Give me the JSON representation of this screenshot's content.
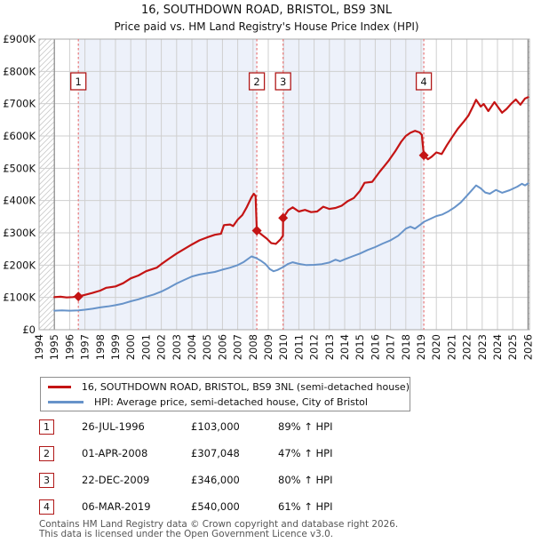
{
  "header": {
    "title": "16, SOUTHDOWN ROAD, BRISTOL, BS9 3NL",
    "subtitle": "Price paid vs. HM Land Registry's House Price Index (HPI)"
  },
  "chart_data": {
    "type": "line",
    "values_unit": "GBP_thousands",
    "x_axis": {
      "tick_years": [
        1994,
        1995,
        1996,
        1997,
        1998,
        1999,
        2000,
        2001,
        2002,
        2003,
        2004,
        2005,
        2006,
        2007,
        2008,
        2009,
        2010,
        2011,
        2012,
        2013,
        2014,
        2015,
        2016,
        2017,
        2018,
        2019,
        2020,
        2021,
        2022,
        2023,
        2024,
        2025,
        2026
      ]
    },
    "y_axis": {
      "tick_values": [
        0,
        100,
        200,
        300,
        400,
        500,
        600,
        700,
        800,
        900
      ],
      "tick_labels": [
        "£0",
        "£100K",
        "£200K",
        "£300K",
        "£400K",
        "£500K",
        "£600K",
        "£700K",
        "£800K",
        "£900K"
      ]
    },
    "data_range": {
      "start_year": 1995.0,
      "end_year": 2026.0
    },
    "shading": {
      "color": "#edf1fa",
      "intervals": [
        [
          1996.57,
          2008.25
        ],
        [
          2009.97,
          2019.18
        ]
      ]
    },
    "series": [
      {
        "name": "price-paid",
        "color": "#c41414",
        "width": 2.2,
        "points": [
          [
            1995.0,
            101
          ],
          [
            1995.4,
            102
          ],
          [
            1995.8,
            100
          ],
          [
            1996.2,
            101
          ],
          [
            1996.57,
            103
          ],
          [
            1997.0,
            108
          ],
          [
            1997.5,
            114
          ],
          [
            1998.0,
            121
          ],
          [
            1998.4,
            130
          ],
          [
            1999.0,
            134
          ],
          [
            1999.5,
            144
          ],
          [
            2000.0,
            159
          ],
          [
            2000.5,
            168
          ],
          [
            2001.0,
            181
          ],
          [
            2001.3,
            186
          ],
          [
            2001.7,
            192
          ],
          [
            2002.0,
            203
          ],
          [
            2002.5,
            220
          ],
          [
            2003.0,
            236
          ],
          [
            2003.5,
            250
          ],
          [
            2004.0,
            264
          ],
          [
            2004.5,
            277
          ],
          [
            2005.0,
            286
          ],
          [
            2005.5,
            294
          ],
          [
            2005.9,
            297
          ],
          [
            2006.1,
            324
          ],
          [
            2006.5,
            326
          ],
          [
            2006.7,
            321
          ],
          [
            2007.0,
            341
          ],
          [
            2007.3,
            355
          ],
          [
            2007.6,
            380
          ],
          [
            2007.9,
            410
          ],
          [
            2008.05,
            421
          ],
          [
            2008.17,
            414
          ],
          [
            2008.25,
            307
          ],
          [
            2008.5,
            297
          ],
          [
            2008.9,
            282
          ],
          [
            2009.2,
            268
          ],
          [
            2009.5,
            266
          ],
          [
            2009.8,
            280
          ],
          [
            2009.96,
            291
          ],
          [
            2009.97,
            346
          ],
          [
            2010.3,
            370
          ],
          [
            2010.6,
            379
          ],
          [
            2011.0,
            366
          ],
          [
            2011.4,
            371
          ],
          [
            2011.8,
            364
          ],
          [
            2012.2,
            366
          ],
          [
            2012.6,
            381
          ],
          [
            2013.0,
            374
          ],
          [
            2013.4,
            377
          ],
          [
            2013.8,
            384
          ],
          [
            2014.2,
            398
          ],
          [
            2014.6,
            408
          ],
          [
            2015.0,
            430
          ],
          [
            2015.3,
            455
          ],
          [
            2015.8,
            458
          ],
          [
            2016.3,
            490
          ],
          [
            2016.6,
            507
          ],
          [
            2016.9,
            525
          ],
          [
            2017.3,
            552
          ],
          [
            2017.7,
            582
          ],
          [
            2018.0,
            600
          ],
          [
            2018.3,
            610
          ],
          [
            2018.6,
            616
          ],
          [
            2018.9,
            611
          ],
          [
            2019.05,
            603
          ],
          [
            2019.18,
            540
          ],
          [
            2019.45,
            528
          ],
          [
            2019.7,
            536
          ],
          [
            2020.0,
            549
          ],
          [
            2020.35,
            544
          ],
          [
            2020.7,
            572
          ],
          [
            2021.0,
            594
          ],
          [
            2021.4,
            622
          ],
          [
            2021.8,
            645
          ],
          [
            2022.1,
            663
          ],
          [
            2022.4,
            692
          ],
          [
            2022.6,
            712
          ],
          [
            2022.9,
            691
          ],
          [
            2023.1,
            699
          ],
          [
            2023.4,
            677
          ],
          [
            2023.8,
            705
          ],
          [
            2024.0,
            692
          ],
          [
            2024.3,
            672
          ],
          [
            2024.6,
            684
          ],
          [
            2024.9,
            700
          ],
          [
            2025.2,
            713
          ],
          [
            2025.5,
            697
          ],
          [
            2025.8,
            716
          ],
          [
            2026.0,
            720
          ]
        ]
      },
      {
        "name": "hpi-average",
        "color": "#6793c9",
        "width": 2,
        "points": [
          [
            1995.0,
            59
          ],
          [
            1995.5,
            60
          ],
          [
            1996.0,
            59
          ],
          [
            1996.6,
            60
          ],
          [
            1997.0,
            62
          ],
          [
            1997.5,
            65
          ],
          [
            1998.0,
            69
          ],
          [
            1998.5,
            72
          ],
          [
            1999.0,
            76
          ],
          [
            1999.5,
            81
          ],
          [
            2000.0,
            88
          ],
          [
            2000.5,
            94
          ],
          [
            2001.0,
            102
          ],
          [
            2001.5,
            109
          ],
          [
            2002.0,
            118
          ],
          [
            2002.5,
            130
          ],
          [
            2003.0,
            143
          ],
          [
            2003.5,
            154
          ],
          [
            2004.0,
            165
          ],
          [
            2004.5,
            171
          ],
          [
            2005.0,
            175
          ],
          [
            2005.5,
            179
          ],
          [
            2006.0,
            186
          ],
          [
            2006.5,
            192
          ],
          [
            2007.0,
            200
          ],
          [
            2007.4,
            210
          ],
          [
            2007.9,
            227
          ],
          [
            2008.2,
            222
          ],
          [
            2008.5,
            214
          ],
          [
            2008.8,
            204
          ],
          [
            2009.1,
            188
          ],
          [
            2009.35,
            181
          ],
          [
            2009.6,
            185
          ],
          [
            2009.97,
            194
          ],
          [
            2010.3,
            204
          ],
          [
            2010.6,
            209
          ],
          [
            2011.0,
            204
          ],
          [
            2011.5,
            200
          ],
          [
            2012.0,
            201
          ],
          [
            2012.5,
            203
          ],
          [
            2013.0,
            208
          ],
          [
            2013.4,
            217
          ],
          [
            2013.7,
            212
          ],
          [
            2014.0,
            218
          ],
          [
            2014.5,
            227
          ],
          [
            2015.0,
            236
          ],
          [
            2015.5,
            247
          ],
          [
            2016.0,
            256
          ],
          [
            2016.5,
            267
          ],
          [
            2017.0,
            277
          ],
          [
            2017.5,
            291
          ],
          [
            2018.0,
            313
          ],
          [
            2018.3,
            319
          ],
          [
            2018.6,
            313
          ],
          [
            2019.0,
            327
          ],
          [
            2019.18,
            334
          ],
          [
            2019.5,
            341
          ],
          [
            2020.0,
            352
          ],
          [
            2020.4,
            357
          ],
          [
            2020.8,
            367
          ],
          [
            2021.2,
            379
          ],
          [
            2021.6,
            394
          ],
          [
            2022.0,
            415
          ],
          [
            2022.3,
            431
          ],
          [
            2022.6,
            447
          ],
          [
            2022.9,
            438
          ],
          [
            2023.2,
            425
          ],
          [
            2023.5,
            421
          ],
          [
            2023.9,
            433
          ],
          [
            2024.3,
            424
          ],
          [
            2024.8,
            432
          ],
          [
            2025.3,
            443
          ],
          [
            2025.6,
            452
          ],
          [
            2025.8,
            447
          ],
          [
            2026.0,
            453
          ]
        ]
      }
    ],
    "sales": [
      {
        "label": "1",
        "year": 1996.57,
        "price_k": 103,
        "date": "26-JUL-1996",
        "price": "£103,000",
        "hpi_delta": "89% ↑ HPI"
      },
      {
        "label": "2",
        "year": 2008.25,
        "price_k": 307,
        "date": "01-APR-2008",
        "price": "£307,048",
        "hpi_delta": "47% ↑ HPI"
      },
      {
        "label": "3",
        "year": 2009.97,
        "price_k": 346,
        "date": "22-DEC-2009",
        "price": "£346,000",
        "hpi_delta": "80% ↑ HPI"
      },
      {
        "label": "4",
        "year": 2019.18,
        "price_k": 540,
        "date": "06-MAR-2019",
        "price": "£540,000",
        "hpi_delta": "61% ↑ HPI"
      }
    ],
    "marker_color": "#c41414",
    "sale_line_color": "#e87878",
    "grid_color": "#cfcfcf",
    "border_color": "#aaaaaa",
    "edge_line_color": "#8a8a8a",
    "hatch_color": "#c9c9c9",
    "number_box_border": "#b01818"
  },
  "legend": {
    "items": [
      {
        "label": "16, SOUTHDOWN ROAD, BRISTOL, BS9 3NL (semi-detached house)",
        "color": "#c41414"
      },
      {
        "label": "HPI: Average price, semi-detached house, City of Bristol",
        "color": "#6793c9"
      }
    ]
  },
  "footer": {
    "line1": "Contains HM Land Registry data © Crown copyright and database right 2026.",
    "line2": "This data is licensed under the Open Government Licence v3.0."
  }
}
